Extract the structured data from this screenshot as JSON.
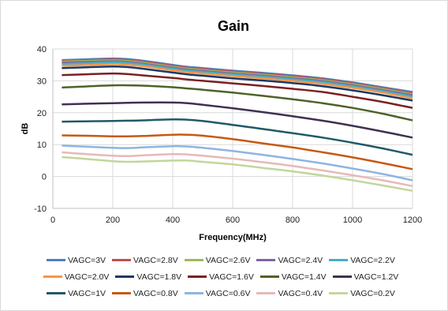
{
  "chart_data": {
    "type": "line",
    "title": "Gain",
    "xlabel": "Frequency(MHz)",
    "ylabel": "dB",
    "xlim": [
      0,
      1200
    ],
    "ylim": [
      -10,
      40
    ],
    "xticks": [
      "0",
      "200",
      "400",
      "600",
      "800",
      "1000",
      "1200"
    ],
    "yticks": [
      "-10",
      "0",
      "10",
      "20",
      "30",
      "40"
    ],
    "grid": true,
    "legend_position": "bottom",
    "x": [
      30,
      100,
      200,
      250,
      300,
      400,
      450,
      500,
      600,
      700,
      800,
      900,
      1000,
      1100,
      1200
    ],
    "series": [
      {
        "name": "VAGC=3V",
        "color": "#4f81bd",
        "values": [
          36.5,
          36.7,
          37.0,
          36.8,
          36.3,
          35.0,
          34.4,
          34.0,
          33.2,
          32.5,
          31.7,
          30.8,
          29.5,
          28.0,
          26.5
        ]
      },
      {
        "name": "VAGC=2.8V",
        "color": "#c0504d",
        "values": [
          36.2,
          36.4,
          36.7,
          36.5,
          36.0,
          34.7,
          34.1,
          33.7,
          32.9,
          32.2,
          31.4,
          30.5,
          29.2,
          27.7,
          26.1
        ]
      },
      {
        "name": "VAGC=2.6V",
        "color": "#9bbb59",
        "values": [
          36.0,
          36.2,
          36.4,
          36.2,
          35.7,
          34.4,
          33.8,
          33.4,
          32.6,
          31.9,
          31.1,
          30.2,
          28.9,
          27.4,
          25.8
        ]
      },
      {
        "name": "VAGC=2.4V",
        "color": "#8064a2",
        "values": [
          35.7,
          35.9,
          36.1,
          35.9,
          35.4,
          34.1,
          33.5,
          33.1,
          32.3,
          31.6,
          30.8,
          29.9,
          28.6,
          27.1,
          25.5
        ]
      },
      {
        "name": "VAGC=2.2V",
        "color": "#4bacc6",
        "values": [
          35.3,
          35.5,
          35.8,
          35.6,
          35.1,
          33.8,
          33.2,
          32.8,
          32.0,
          31.3,
          30.5,
          29.6,
          28.3,
          26.8,
          25.1
        ]
      },
      {
        "name": "VAGC=2.0V",
        "color": "#f79646",
        "values": [
          34.7,
          34.9,
          35.2,
          35.0,
          34.6,
          33.3,
          32.7,
          32.3,
          31.5,
          30.8,
          30.0,
          29.0,
          27.8,
          26.3,
          24.5
        ]
      },
      {
        "name": "VAGC=1.8V",
        "color": "#1f3864",
        "values": [
          34.0,
          34.2,
          34.5,
          34.3,
          33.8,
          32.6,
          32.0,
          31.6,
          30.8,
          30.1,
          29.3,
          28.3,
          27.0,
          25.5,
          23.8
        ]
      },
      {
        "name": "VAGC=1.6V",
        "color": "#7b2020",
        "values": [
          31.8,
          32.0,
          32.3,
          32.1,
          31.7,
          30.9,
          30.4,
          30.0,
          29.2,
          28.4,
          27.5,
          26.5,
          25.0,
          23.4,
          21.5
        ]
      },
      {
        "name": "VAGC=1.4V",
        "color": "#4f6228",
        "values": [
          27.9,
          28.2,
          28.6,
          28.6,
          28.5,
          28.0,
          27.6,
          27.2,
          26.3,
          25.3,
          24.2,
          23.0,
          21.5,
          19.7,
          17.6
        ]
      },
      {
        "name": "VAGC=1.2V",
        "color": "#3f3151",
        "values": [
          22.6,
          22.8,
          23.0,
          23.1,
          23.2,
          23.2,
          23.0,
          22.5,
          21.4,
          20.2,
          18.9,
          17.5,
          15.9,
          14.1,
          12.2
        ]
      },
      {
        "name": "VAGC=1V",
        "color": "#215967",
        "values": [
          17.2,
          17.3,
          17.4,
          17.5,
          17.6,
          17.9,
          17.8,
          17.4,
          16.2,
          14.9,
          13.6,
          12.2,
          10.6,
          8.8,
          6.8
        ]
      },
      {
        "name": "VAGC=0.8V",
        "color": "#c55a11",
        "values": [
          12.9,
          12.8,
          12.6,
          12.6,
          12.7,
          13.1,
          13.1,
          12.8,
          11.7,
          10.4,
          9.1,
          7.6,
          6.0,
          4.2,
          2.3
        ]
      },
      {
        "name": "VAGC=0.6V",
        "color": "#8eb4e3",
        "values": [
          9.7,
          9.4,
          9.0,
          8.9,
          9.1,
          9.5,
          9.4,
          9.0,
          8.0,
          6.8,
          5.5,
          4.1,
          2.5,
          0.8,
          -1.2
        ]
      },
      {
        "name": "VAGC=0.4V",
        "color": "#e6b9b8",
        "values": [
          7.6,
          7.1,
          6.5,
          6.4,
          6.6,
          7.0,
          6.9,
          6.5,
          5.6,
          4.5,
          3.3,
          1.9,
          0.4,
          -1.2,
          -3.0
        ]
      },
      {
        "name": "VAGC=0.2V",
        "color": "#c3d69b",
        "values": [
          6.1,
          5.6,
          4.8,
          4.6,
          4.7,
          5.0,
          5.0,
          4.6,
          3.8,
          2.7,
          1.6,
          0.3,
          -1.2,
          -2.8,
          -4.5
        ]
      }
    ]
  }
}
